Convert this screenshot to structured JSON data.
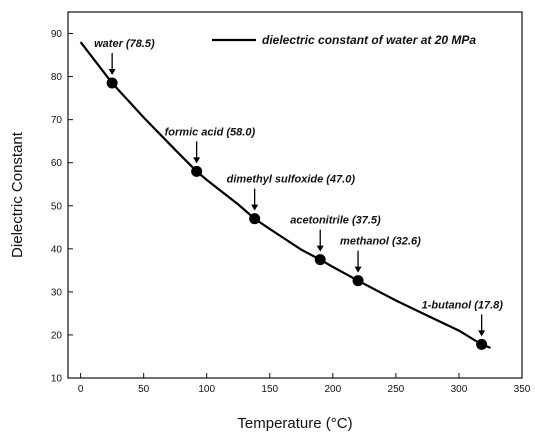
{
  "chart_data": {
    "type": "line",
    "xlabel": "Temperature (°C)",
    "ylabel": "Dielectric Constant",
    "xlim": [
      -10,
      350
    ],
    "ylim": [
      10,
      95
    ],
    "x_ticks": [
      0,
      50,
      100,
      150,
      200,
      250,
      300,
      350
    ],
    "y_ticks": [
      10,
      20,
      30,
      40,
      50,
      60,
      70,
      80,
      90
    ],
    "grid": false,
    "legend_position": "top-right",
    "series": [
      {
        "name": "dielectric constant of water at 20 MPa",
        "color": "#000000",
        "x": [
          0,
          25,
          50,
          75,
          92,
          100,
          125,
          138,
          150,
          175,
          190,
          200,
          220,
          250,
          275,
          300,
          318,
          325
        ],
        "y": [
          88.0,
          78.5,
          70.5,
          63.0,
          58.0,
          56.0,
          50.3,
          47.0,
          44.6,
          39.8,
          37.5,
          35.8,
          32.6,
          28.0,
          24.5,
          21.0,
          17.8,
          17.0
        ]
      }
    ],
    "points": [
      {
        "x": 25,
        "y": 78.5,
        "label": "water (78.5)"
      },
      {
        "x": 92,
        "y": 58.0,
        "label": "formic acid (58.0)"
      },
      {
        "x": 138,
        "y": 47.0,
        "label": "dimethyl sulfoxide (47.0)"
      },
      {
        "x": 190,
        "y": 37.5,
        "label": "acetonitrile (37.5)"
      },
      {
        "x": 220,
        "y": 32.6,
        "label": "methanol (32.6)"
      },
      {
        "x": 318,
        "y": 17.8,
        "label": "1-butanol (17.8)"
      }
    ]
  }
}
